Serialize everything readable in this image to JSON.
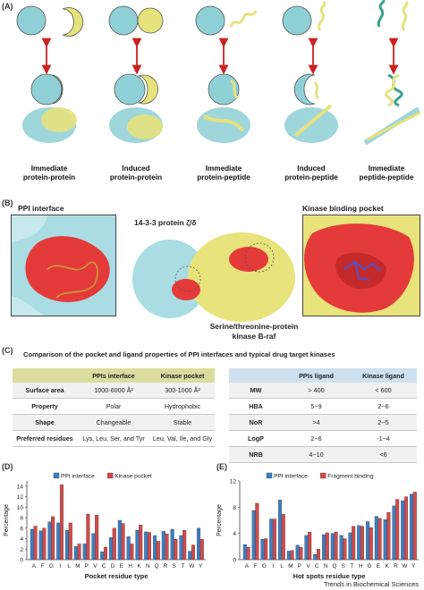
{
  "panel_labels": {
    "a": "(A)",
    "b": "(B)",
    "c": "(C)",
    "d": "(D)",
    "e": "(E)"
  },
  "panel_a": {
    "captions": [
      [
        "Immediate",
        "protein-protein"
      ],
      [
        "Induced",
        "protein-protein"
      ],
      [
        "Immediate",
        "protein-peptide"
      ],
      [
        "Induced",
        "protein-peptide"
      ],
      [
        "Immediate",
        "peptide-peptide"
      ]
    ],
    "colors": {
      "cyan": "#8fd0d6",
      "yellow": "#e6e27c",
      "arrow": "#cc2222",
      "green": "#3aa08f"
    }
  },
  "panel_b": {
    "left_title": "PPI interface",
    "center_title": "14-3-3 protein ζ/δ",
    "right_title": "Kinase binding pocket",
    "bottom_label_1": "Serine/threonine-protein",
    "bottom_label_2": "kinase B-raf",
    "colors": {
      "cyan": "#a9dde3",
      "yellow": "#e8e37a",
      "red": "#e53a3a"
    }
  },
  "panel_c": {
    "title": "Comparison of the pocket and ligand properties of PPI interfaces and typical drug target kinases",
    "table1": {
      "headers": [
        "",
        "PPIs interface",
        "Kinase pocket"
      ],
      "rows": [
        [
          "Surface area",
          "1000-6000 Å²",
          "300-1000 Å²"
        ],
        [
          "Property",
          "Polar",
          "Hydrophobic"
        ],
        [
          "Shape",
          "Changeable",
          "Stable"
        ],
        [
          "Preferred residues",
          "Lys, Leu, Ser, and Tyr",
          "Leu, Val, Ile, and Gly"
        ]
      ]
    },
    "table2": {
      "headers": [
        "",
        "PPIs ligand",
        "Kinase ligand"
      ],
      "rows": [
        [
          "MW",
          "> 400",
          "< 600"
        ],
        [
          "HBA",
          "5~9",
          "2~6"
        ],
        [
          "NoR",
          ">4",
          "2~5"
        ],
        [
          "LogP",
          "2~6",
          "-1~4"
        ],
        [
          "NRB",
          "4~10",
          "<6"
        ]
      ]
    }
  },
  "chart_data": [
    {
      "type": "bar",
      "panel": "(D)",
      "categories": [
        "A",
        "F",
        "G",
        "I",
        "L",
        "M",
        "P",
        "V",
        "C",
        "D",
        "E",
        "H",
        "K",
        "N",
        "Q",
        "R",
        "S",
        "T",
        "W",
        "Y"
      ],
      "series": [
        {
          "name": "PPI interface",
          "values": [
            5.8,
            5.5,
            7.2,
            7.0,
            5.6,
            2.5,
            3.0,
            5.0,
            1.5,
            4.2,
            7.5,
            4.4,
            5.6,
            5.3,
            4.6,
            5.4,
            5.8,
            4.6,
            1.6,
            6.0
          ]
        },
        {
          "name": "Kinase pocket",
          "values": [
            6.4,
            6.0,
            8.2,
            14.3,
            7.0,
            3.0,
            8.7,
            8.5,
            2.4,
            6.0,
            6.9,
            3.0,
            6.6,
            5.2,
            3.5,
            4.9,
            3.9,
            5.6,
            2.8,
            3.9
          ]
        }
      ],
      "ylabel": "Percentage",
      "xlabel": "Pocket residue type",
      "yticks": [
        0,
        2,
        4,
        6,
        8,
        10,
        12,
        14
      ],
      "ylim": [
        0,
        15
      ],
      "colors": [
        "#3a7fc4",
        "#d44a4a"
      ]
    },
    {
      "type": "bar",
      "panel": "(E)",
      "categories": [
        "A",
        "F",
        "G",
        "I",
        "L",
        "M",
        "P",
        "V",
        "C",
        "N",
        "Q",
        "S",
        "T",
        "H",
        "D",
        "E",
        "K",
        "R",
        "W",
        "Y"
      ],
      "series": [
        {
          "name": "PPI interface",
          "values": [
            2.3,
            7.5,
            3.1,
            6.2,
            9.1,
            1.3,
            2.2,
            3.7,
            0.8,
            3.8,
            4.0,
            3.7,
            4.1,
            5.2,
            5.8,
            6.6,
            6.1,
            8.2,
            9.0,
            10.0
          ]
        },
        {
          "name": "Fragment binding",
          "values": [
            1.9,
            8.6,
            3.2,
            6.2,
            6.9,
            1.4,
            1.9,
            4.2,
            1.6,
            4.1,
            4.2,
            3.2,
            5.1,
            5.1,
            4.9,
            6.3,
            7.2,
            9.2,
            9.6,
            10.3
          ]
        }
      ],
      "ylabel": "Percentage",
      "xlabel": "Hot spots residue type",
      "yticks": [
        0,
        4,
        8,
        12
      ],
      "ylim": [
        0,
        12
      ],
      "colors": [
        "#3a7fc4",
        "#d44a4a"
      ]
    }
  ],
  "footer": "Trends in Biochemical Sciences"
}
